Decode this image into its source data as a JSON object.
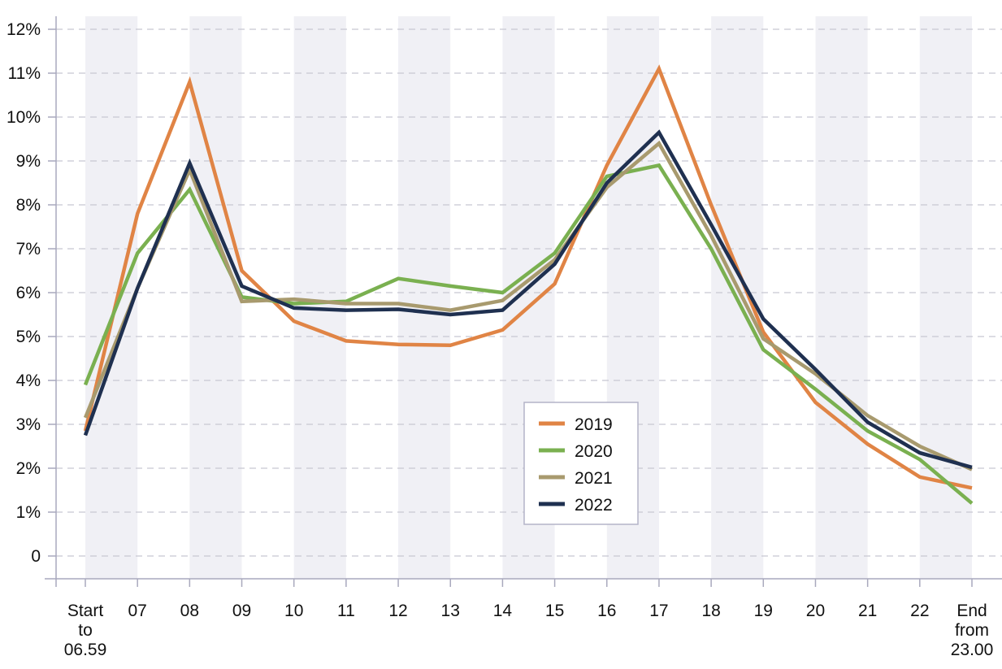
{
  "chart_data": {
    "type": "line",
    "title": "",
    "xlabel": "",
    "ylabel": "",
    "categories": [
      [
        "Start",
        "to",
        "06.59"
      ],
      [
        "07"
      ],
      [
        "08"
      ],
      [
        "09"
      ],
      [
        "10"
      ],
      [
        "11"
      ],
      [
        "12"
      ],
      [
        "13"
      ],
      [
        "14"
      ],
      [
        "15"
      ],
      [
        "16"
      ],
      [
        "17"
      ],
      [
        "18"
      ],
      [
        "19"
      ],
      [
        "20"
      ],
      [
        "21"
      ],
      [
        "22"
      ],
      [
        "End",
        "from",
        "23.00"
      ]
    ],
    "yticks": [
      "0",
      "1%",
      "2%",
      "3%",
      "4%",
      "5%",
      "6%",
      "7%",
      "8%",
      "9%",
      "10%",
      "11%",
      "12%"
    ],
    "ylim": [
      0,
      12
    ],
    "grid": "horizontal dashed",
    "alternating_column_shading": true,
    "legend_position": "center-bottom",
    "series": [
      {
        "name": "2019",
        "color": "#e08445",
        "values": [
          2.85,
          7.8,
          10.8,
          6.5,
          5.35,
          4.9,
          4.82,
          4.8,
          5.15,
          6.2,
          8.9,
          11.1,
          8.0,
          5.1,
          3.5,
          2.55,
          1.8,
          1.55
        ]
      },
      {
        "name": "2020",
        "color": "#7ab050",
        "values": [
          3.9,
          6.9,
          8.35,
          5.9,
          5.75,
          5.8,
          6.32,
          6.15,
          6.0,
          6.9,
          8.65,
          8.9,
          7.0,
          4.7,
          3.8,
          2.85,
          2.2,
          1.2
        ]
      },
      {
        "name": "2021",
        "color": "#a89a6e",
        "values": [
          3.15,
          6.1,
          8.8,
          5.8,
          5.85,
          5.75,
          5.75,
          5.6,
          5.82,
          6.75,
          8.4,
          9.4,
          7.3,
          4.95,
          4.15,
          3.2,
          2.5,
          1.97
        ]
      },
      {
        "name": "2022",
        "color": "#1f3050",
        "values": [
          2.75,
          6.1,
          8.95,
          6.15,
          5.65,
          5.6,
          5.62,
          5.5,
          5.6,
          6.65,
          8.5,
          9.65,
          7.55,
          5.4,
          4.25,
          3.05,
          2.35,
          2.02
        ]
      }
    ]
  }
}
